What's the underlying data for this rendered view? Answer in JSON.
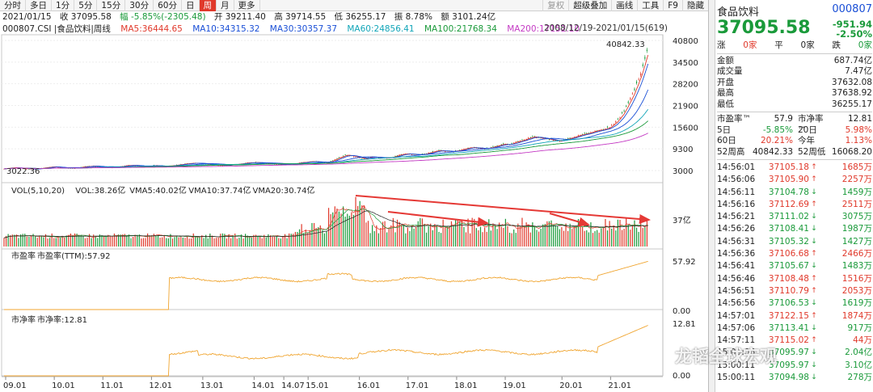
{
  "toolbar": {
    "items": [
      "分时",
      "多日",
      "1分",
      "5分",
      "15分",
      "30分",
      "60分",
      "日",
      "周",
      "月",
      "更多"
    ],
    "active": "周",
    "right_items": [
      "复权",
      "超级叠加",
      "画线",
      "工具",
      "F9",
      "隐藏"
    ]
  },
  "info": {
    "date": "2021/01/15",
    "close": "收 37095.58",
    "change": "幅 -5.85%(-2305.48)",
    "open": "开 39211.40",
    "high": "高 39714.55",
    "low": "低 36255.17",
    "amp": "振 8.78%",
    "amount": "额 3101.24亿"
  },
  "ma_legend": {
    "code": "000807.CSI |食品饮料|周线",
    "ma5": "MA5:36444.65",
    "ma10": "MA10:34315.32",
    "ma30": "MA30:30357.37",
    "ma60": "MA60:24856.41",
    "ma100": "MA100:21768.34",
    "ma200": "MA200:17152.10"
  },
  "range": "2008/12/19-2021/01/15(619)",
  "price_axis": [
    "40800",
    "34500",
    "28200",
    "21900",
    "15600",
    "9300",
    "3000"
  ],
  "price_max_label": "40842.33",
  "price_min_label": "3022.36",
  "vol_legend": {
    "name": "VOL(5,10,20)",
    "vol": "VOL:38.26亿",
    "vma5": "VMA5:40.02亿",
    "vma10": "VMA10:37.74亿",
    "vma20": "VMA20:30.74亿"
  },
  "vol_axis": [
    "37亿"
  ],
  "pe_legend": {
    "name": "市盈率",
    "sub": "市盈率(TTM):57.92"
  },
  "pe_axis": [
    "57.92",
    "0.00"
  ],
  "pb_legend": {
    "name": "市净率",
    "sub": "市净率:12.81"
  },
  "pb_axis": [
    "12.81",
    "0.00"
  ],
  "x_axis": [
    "09.01",
    "10.01",
    "11.01",
    "12.01",
    "13.01",
    "14.01",
    "14.07",
    "15.01",
    "16.01",
    "17.01",
    "18.01",
    "19.01",
    "20.01",
    "21.01"
  ],
  "x_axis_pos": [
    0.0,
    0.09,
    0.18,
    0.27,
    0.365,
    0.46,
    0.515,
    0.56,
    0.655,
    0.745,
    0.835,
    0.925,
    1.03,
    1.12
  ],
  "panel": {
    "name": "食品饮料",
    "code": "000807",
    "price": "37095.58",
    "change": "-951.94",
    "pct": "-2.50%",
    "updown": {
      "up_label": "涨",
      "up": "0家",
      "flat_label": "平",
      "flat": "0家",
      "down_label": "跌",
      "down": "0家"
    },
    "stats": [
      [
        "金额",
        "687.74亿"
      ],
      [
        "成交量",
        "7.47亿"
      ],
      [
        "开盘",
        "37632.08"
      ],
      [
        "最高",
        "37638.92"
      ],
      [
        "最低",
        "36255.17"
      ]
    ],
    "metrics": [
      [
        "市盈率™",
        "57.9",
        "市净率™",
        "12.81"
      ],
      [
        "5日",
        "-5.85%",
        "20日",
        "5.98%"
      ],
      [
        "60日",
        "20.21%",
        "今年",
        "1.13%"
      ],
      [
        "52周高",
        "40842.33",
        "52周低",
        "16068.20"
      ]
    ],
    "ticks": [
      [
        "14:56:01",
        "37105.18",
        "up",
        "1685万"
      ],
      [
        "14:56:06",
        "37105.90",
        "up",
        "2257万"
      ],
      [
        "14:56:11",
        "37104.78",
        "down",
        "1459万"
      ],
      [
        "14:56:16",
        "37112.69",
        "up",
        "2511万"
      ],
      [
        "14:56:21",
        "37111.02",
        "down",
        "3075万"
      ],
      [
        "14:56:26",
        "37108.41",
        "down",
        "1987万"
      ],
      [
        "14:56:31",
        "37105.32",
        "down",
        "1427万"
      ],
      [
        "14:56:36",
        "37106.68",
        "up",
        "2466万"
      ],
      [
        "14:56:41",
        "37105.67",
        "down",
        "1483万"
      ],
      [
        "14:56:46",
        "37108.48",
        "up",
        "1516万"
      ],
      [
        "14:56:51",
        "37110.79",
        "up",
        "2053万"
      ],
      [
        "14:56:56",
        "37106.53",
        "down",
        "1619万"
      ],
      [
        "14:57:01",
        "37122.15",
        "up",
        "1874万"
      ],
      [
        "14:57:06",
        "37113.41",
        "down",
        "917万"
      ],
      [
        "14:57:11",
        "37115.02",
        "up",
        "44万"
      ],
      [
        "15:00:06",
        "37095.97",
        "down",
        "2.04亿"
      ],
      [
        "15:00:11",
        "37095.97",
        "down",
        "3.10亿"
      ],
      [
        "15:00:11",
        "37094.98",
        "down",
        "278万"
      ]
    ]
  },
  "watermark": "龙韬全球宏观",
  "colors": {
    "up": "#e0392b",
    "down": "#1a9a3a",
    "ma5": "#e0392b",
    "ma10": "#1a4fd6",
    "ma30": "#1a4fd6",
    "ma60": "#12a5b8",
    "ma100": "#1a9a3a",
    "ma200": "#c43bc4",
    "pe": "#f0a530"
  }
}
